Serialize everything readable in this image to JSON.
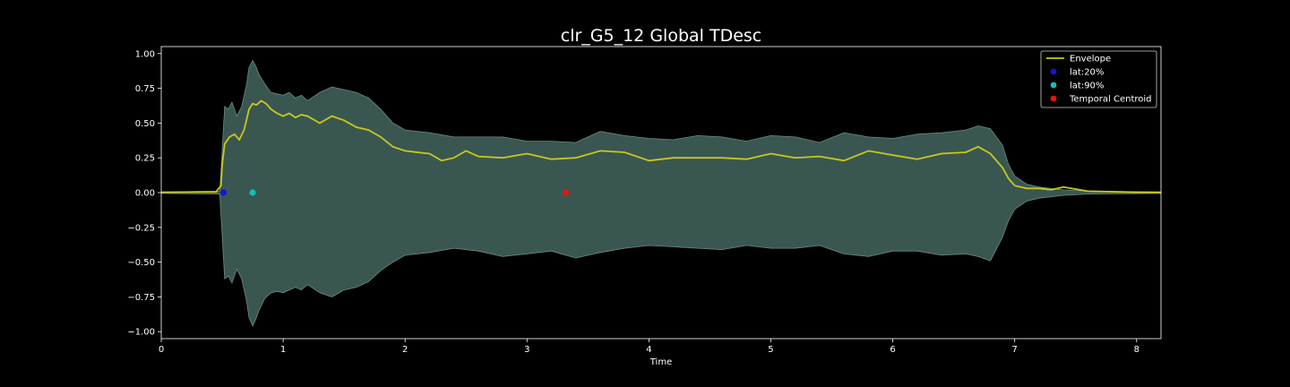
{
  "chart_data": {
    "type": "area",
    "title": "clr_G5_12 Global TDesc",
    "xlabel": "Time",
    "ylabel": "",
    "xlim": [
      0,
      8.2
    ],
    "ylim": [
      -1.05,
      1.05
    ],
    "x_ticks": [
      0,
      1,
      2,
      3,
      4,
      5,
      6,
      7,
      8
    ],
    "x_tick_labels": [
      "0",
      "1",
      "2",
      "3",
      "4",
      "5",
      "6",
      "7",
      "8"
    ],
    "y_ticks": [
      1.0,
      0.75,
      0.5,
      0.25,
      0.0,
      -0.25,
      -0.5,
      -0.75,
      -1.0
    ],
    "y_tick_labels": [
      "1.00",
      "0.75",
      "0.50",
      "0.25",
      "0.00",
      "−0.25",
      "−0.50",
      "−0.75",
      "−1.00"
    ],
    "grid": false,
    "legend_position": "top-right",
    "colors": {
      "background": "#000000",
      "waveform": "#3a5650",
      "envelope": "#c8c81e",
      "lat20": "#1515d6",
      "lat90": "#17bcbc",
      "centroid": "#e01818",
      "axes": "#ffffff"
    },
    "waveform": {
      "x": [
        0,
        0.48,
        0.5,
        0.52,
        0.55,
        0.58,
        0.62,
        0.66,
        0.7,
        0.72,
        0.75,
        0.78,
        0.8,
        0.85,
        0.9,
        0.95,
        1.0,
        1.05,
        1.1,
        1.15,
        1.2,
        1.3,
        1.4,
        1.5,
        1.6,
        1.7,
        1.8,
        1.9,
        2.0,
        2.2,
        2.4,
        2.6,
        2.8,
        3.0,
        3.2,
        3.4,
        3.6,
        3.8,
        4.0,
        4.2,
        4.4,
        4.6,
        4.8,
        5.0,
        5.2,
        5.4,
        5.6,
        5.8,
        6.0,
        6.2,
        6.4,
        6.6,
        6.7,
        6.8,
        6.9,
        6.95,
        7.0,
        7.1,
        7.2,
        7.4,
        7.6,
        8.2
      ],
      "y_upper": [
        0.005,
        0.01,
        0.3,
        0.62,
        0.6,
        0.65,
        0.55,
        0.62,
        0.78,
        0.9,
        0.95,
        0.9,
        0.85,
        0.78,
        0.72,
        0.71,
        0.7,
        0.72,
        0.68,
        0.7,
        0.66,
        0.72,
        0.76,
        0.74,
        0.72,
        0.68,
        0.6,
        0.5,
        0.45,
        0.43,
        0.4,
        0.4,
        0.4,
        0.37,
        0.37,
        0.36,
        0.44,
        0.41,
        0.39,
        0.38,
        0.41,
        0.4,
        0.37,
        0.41,
        0.4,
        0.36,
        0.43,
        0.4,
        0.39,
        0.42,
        0.43,
        0.45,
        0.48,
        0.46,
        0.34,
        0.2,
        0.12,
        0.06,
        0.04,
        0.02,
        0.01,
        0.005
      ],
      "y_lower": [
        -0.005,
        -0.01,
        -0.3,
        -0.62,
        -0.6,
        -0.65,
        -0.55,
        -0.62,
        -0.78,
        -0.9,
        -0.96,
        -0.9,
        -0.85,
        -0.76,
        -0.72,
        -0.71,
        -0.72,
        -0.7,
        -0.68,
        -0.7,
        -0.66,
        -0.72,
        -0.75,
        -0.7,
        -0.68,
        -0.64,
        -0.56,
        -0.5,
        -0.45,
        -0.43,
        -0.4,
        -0.42,
        -0.46,
        -0.44,
        -0.42,
        -0.47,
        -0.43,
        -0.4,
        -0.38,
        -0.39,
        -0.4,
        -0.41,
        -0.38,
        -0.4,
        -0.4,
        -0.38,
        -0.44,
        -0.46,
        -0.42,
        -0.42,
        -0.45,
        -0.44,
        -0.46,
        -0.49,
        -0.32,
        -0.2,
        -0.12,
        -0.06,
        -0.04,
        -0.02,
        -0.01,
        -0.005
      ]
    },
    "series": [
      {
        "name": "Envelope",
        "x": [
          0,
          0.45,
          0.49,
          0.5,
          0.52,
          0.56,
          0.6,
          0.64,
          0.68,
          0.72,
          0.75,
          0.78,
          0.82,
          0.86,
          0.9,
          0.95,
          1.0,
          1.05,
          1.1,
          1.15,
          1.2,
          1.3,
          1.4,
          1.5,
          1.6,
          1.7,
          1.8,
          1.9,
          2.0,
          2.1,
          2.2,
          2.3,
          2.4,
          2.5,
          2.6,
          2.8,
          3.0,
          3.2,
          3.4,
          3.6,
          3.8,
          4.0,
          4.2,
          4.4,
          4.6,
          4.8,
          5.0,
          5.2,
          5.4,
          5.6,
          5.8,
          6.0,
          6.2,
          6.4,
          6.6,
          6.7,
          6.8,
          6.9,
          6.95,
          7.0,
          7.1,
          7.2,
          7.3,
          7.4,
          7.6,
          8.0,
          8.2
        ],
        "y": [
          0.002,
          0.005,
          0.05,
          0.2,
          0.35,
          0.4,
          0.42,
          0.38,
          0.45,
          0.6,
          0.64,
          0.63,
          0.66,
          0.64,
          0.6,
          0.57,
          0.55,
          0.57,
          0.54,
          0.56,
          0.55,
          0.5,
          0.55,
          0.52,
          0.47,
          0.45,
          0.4,
          0.33,
          0.3,
          0.29,
          0.28,
          0.23,
          0.25,
          0.3,
          0.26,
          0.25,
          0.28,
          0.24,
          0.25,
          0.3,
          0.29,
          0.23,
          0.25,
          0.25,
          0.25,
          0.24,
          0.28,
          0.25,
          0.26,
          0.23,
          0.3,
          0.27,
          0.24,
          0.28,
          0.29,
          0.33,
          0.28,
          0.18,
          0.1,
          0.05,
          0.03,
          0.03,
          0.02,
          0.04,
          0.01,
          0.002,
          0.001
        ]
      },
      {
        "name": "lat:20%",
        "x": [
          0.51
        ],
        "y": [
          0.0
        ]
      },
      {
        "name": "lat:90%",
        "x": [
          0.75
        ],
        "y": [
          0.0
        ]
      },
      {
        "name": "Temporal Centroid",
        "x": [
          3.32
        ],
        "y": [
          0.0
        ]
      }
    ]
  }
}
